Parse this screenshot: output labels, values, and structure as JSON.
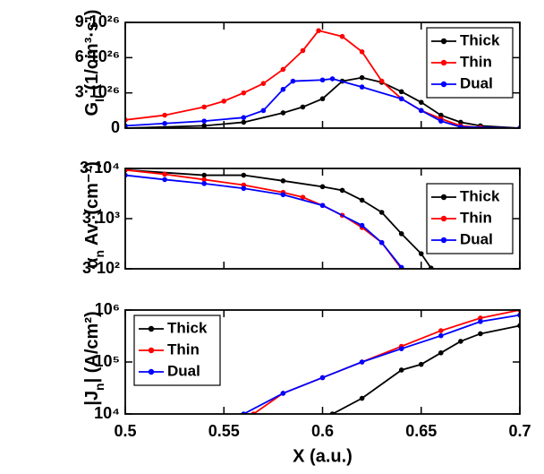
{
  "chart_data": [
    {
      "type": "line",
      "ylabel": {
        "main": "G",
        "sub": "II",
        "rest": " (1/cm³·s¹)"
      },
      "xlim": [
        0.5,
        0.7
      ],
      "xticks": [
        0.5,
        0.55,
        0.6,
        0.65,
        0.7
      ],
      "ylim": [
        0,
        9e+26
      ],
      "yticks": [
        0,
        {
          "value": 3e+26,
          "label": "3·10²⁶"
        },
        {
          "value": 6e+26,
          "label": "6·10²⁶"
        },
        {
          "value": 9e+26,
          "label": "9·10²⁶"
        }
      ],
      "legend": "upper right",
      "series": [
        {
          "name": "Thick",
          "color": "#000000",
          "x": [
            0.5,
            0.54,
            0.56,
            0.58,
            0.59,
            0.6,
            0.61,
            0.62,
            0.63,
            0.64,
            0.65,
            0.66,
            0.67,
            0.68,
            0.7
          ],
          "values": [
            0,
            2e+25,
            5e+25,
            1.3e+26,
            1.8e+26,
            2.5e+26,
            4e+26,
            4.3e+26,
            3.9e+26,
            3.1e+26,
            2.2e+26,
            1.1e+26,
            5e+25,
            2e+25,
            0
          ]
        },
        {
          "name": "Thin",
          "color": "#ff0000",
          "x": [
            0.5,
            0.52,
            0.54,
            0.55,
            0.56,
            0.57,
            0.58,
            0.59,
            0.598,
            0.61,
            0.62,
            0.63,
            0.64,
            0.65,
            0.66,
            0.67,
            0.68,
            0.7
          ],
          "values": [
            7e+25,
            1.1e+26,
            1.8e+26,
            2.3e+26,
            3e+26,
            3.8e+26,
            5e+26,
            6.6e+26,
            8.3e+26,
            7.8e+26,
            6.5e+26,
            4e+26,
            2.5e+26,
            1.5e+26,
            8e+25,
            2e+25,
            5e+24,
            0
          ]
        },
        {
          "name": "Dual",
          "color": "#0000ff",
          "x": [
            0.5,
            0.52,
            0.54,
            0.56,
            0.57,
            0.58,
            0.585,
            0.6,
            0.605,
            0.62,
            0.64,
            0.65,
            0.66,
            0.67,
            0.7
          ],
          "values": [
            2e+25,
            4e+25,
            6e+25,
            9e+25,
            1.5e+26,
            3.3e+26,
            4e+26,
            4.1e+26,
            4.2e+26,
            3.5e+26,
            2.5e+26,
            1.5e+26,
            6e+25,
            1e+25,
            0
          ]
        }
      ]
    },
    {
      "type": "line",
      "ylabel": {
        "main": "α",
        "sub": "n",
        "rest": " Av. (cm⁻¹)"
      },
      "xlim": [
        0.5,
        0.7
      ],
      "xticks": [
        0.5,
        0.55,
        0.6,
        0.65,
        0.7
      ],
      "ylim": [
        300,
        30000
      ],
      "log_y": true,
      "yticks": [
        {
          "value": 300,
          "label": "3·10²"
        },
        {
          "value": 3000,
          "label": "3·10³"
        },
        {
          "value": 30000,
          "label": "3·10⁴"
        }
      ],
      "legend": "center right",
      "series": [
        {
          "name": "Thick",
          "color": "#000000",
          "x": [
            0.5,
            0.54,
            0.56,
            0.58,
            0.6,
            0.61,
            0.62,
            0.63,
            0.64,
            0.65,
            0.655
          ],
          "values": [
            28000,
            22000,
            22000,
            17000,
            13000,
            11000,
            7000,
            4000,
            1500,
            600,
            310
          ]
        },
        {
          "name": "Thin",
          "color": "#ff0000",
          "x": [
            0.5,
            0.52,
            0.54,
            0.56,
            0.58,
            0.59,
            0.6,
            0.61,
            0.62,
            0.63,
            0.64
          ],
          "values": [
            28000,
            23000,
            18000,
            14000,
            10000,
            8000,
            5500,
            3500,
            2000,
            1000,
            300
          ]
        },
        {
          "name": "Dual",
          "color": "#0000ff",
          "x": [
            0.5,
            0.52,
            0.54,
            0.56,
            0.58,
            0.6,
            0.62,
            0.63,
            0.64
          ],
          "values": [
            22000,
            18000,
            15000,
            12000,
            9000,
            5500,
            2200,
            1000,
            320
          ]
        }
      ]
    },
    {
      "type": "line",
      "ylabel": {
        "main": "|J",
        "sub": "n",
        "rest": "| (A/cm²)"
      },
      "xlabel": "X (a.u.)",
      "xlim": [
        0.5,
        0.7
      ],
      "xticks": [
        0.5,
        0.55,
        0.6,
        0.65,
        0.7
      ],
      "ylim": [
        10000,
        1000000
      ],
      "log_y": true,
      "yticks": [
        {
          "value": 10000,
          "label": "10⁴"
        },
        {
          "value": 100000,
          "label": "10⁵"
        },
        {
          "value": 1000000,
          "label": "10⁶"
        }
      ],
      "legend": "upper left",
      "series": [
        {
          "name": "Thick",
          "color": "#000000",
          "x": [
            0.605,
            0.62,
            0.64,
            0.65,
            0.66,
            0.67,
            0.68,
            0.7
          ],
          "values": [
            10000,
            20000,
            70000,
            90000,
            150000,
            250000,
            350000,
            500000
          ]
        },
        {
          "name": "Thin",
          "color": "#ff0000",
          "x": [
            0.565,
            0.58,
            0.6,
            0.62,
            0.64,
            0.66,
            0.68,
            0.7
          ],
          "values": [
            10000,
            25000,
            50000,
            100000,
            200000,
            400000,
            700000,
            1000000
          ]
        },
        {
          "name": "Dual",
          "color": "#0000ff",
          "x": [
            0.56,
            0.58,
            0.6,
            0.62,
            0.64,
            0.66,
            0.68,
            0.7
          ],
          "values": [
            10000,
            25000,
            50000,
            100000,
            180000,
            320000,
            600000,
            800000
          ]
        }
      ]
    }
  ]
}
